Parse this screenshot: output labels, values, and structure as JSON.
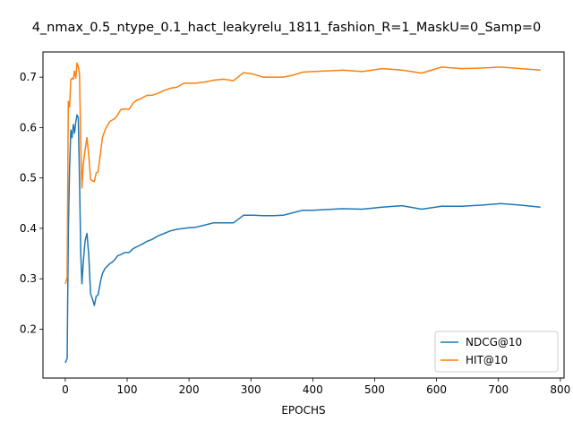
{
  "chart_data": {
    "type": "line",
    "title": "4_nmax_0.5_ntype_0.1_hact_leakyrelu_1811_fashion_R=1_MaskU=0_Samp=0",
    "xlabel": "EPOCHS",
    "ylabel": "",
    "xlim": [
      -36,
      806
    ],
    "ylim": [
      0.103,
      0.75
    ],
    "xticks": [
      0,
      100,
      200,
      300,
      400,
      500,
      600,
      700,
      800
    ],
    "yticks": [
      0.2,
      0.3,
      0.4,
      0.5,
      0.6,
      0.7
    ],
    "grid": false,
    "legend_position": "lower-right",
    "series": [
      {
        "name": "NDCG@10",
        "color": "#1f77b4",
        "x": [
          0,
          3,
          5,
          7,
          9,
          11,
          13,
          15,
          17,
          19,
          21,
          23,
          25,
          27,
          29,
          32,
          35,
          38,
          41,
          44,
          47,
          50,
          53,
          57,
          60,
          64,
          68,
          72,
          76,
          80,
          85,
          90,
          96,
          103,
          110,
          115,
          120,
          126,
          132,
          140,
          150,
          160,
          170,
          180,
          192,
          200,
          210,
          224,
          240,
          256,
          272,
          288,
          304,
          320,
          336,
          352,
          368,
          384,
          400,
          416,
          448,
          480,
          512,
          544,
          576,
          608,
          640,
          672,
          704,
          736,
          768
        ],
        "y": [
          0.133,
          0.142,
          0.39,
          0.52,
          0.595,
          0.58,
          0.606,
          0.589,
          0.611,
          0.625,
          0.62,
          0.5,
          0.35,
          0.29,
          0.33,
          0.375,
          0.39,
          0.348,
          0.27,
          0.26,
          0.247,
          0.265,
          0.268,
          0.295,
          0.31,
          0.32,
          0.325,
          0.33,
          0.333,
          0.338,
          0.346,
          0.348,
          0.352,
          0.352,
          0.36,
          0.363,
          0.366,
          0.37,
          0.374,
          0.378,
          0.385,
          0.39,
          0.395,
          0.398,
          0.4,
          0.401,
          0.402,
          0.406,
          0.411,
          0.411,
          0.411,
          0.426,
          0.426,
          0.425,
          0.425,
          0.426,
          0.431,
          0.436,
          0.436,
          0.437,
          0.439,
          0.438,
          0.442,
          0.445,
          0.438,
          0.444,
          0.444,
          0.446,
          0.449,
          0.446,
          0.442
        ]
      },
      {
        "name": "HIT@10",
        "color": "#ff7f0e",
        "x": [
          0,
          3,
          5,
          7,
          9,
          11,
          13,
          15,
          17,
          19,
          21,
          23,
          25,
          27,
          29,
          32,
          35,
          38,
          41,
          44,
          47,
          50,
          53,
          57,
          60,
          64,
          68,
          72,
          76,
          80,
          85,
          90,
          96,
          103,
          110,
          115,
          120,
          126,
          132,
          140,
          150,
          160,
          170,
          180,
          192,
          200,
          210,
          224,
          240,
          256,
          272,
          288,
          304,
          320,
          336,
          352,
          368,
          384,
          400,
          416,
          448,
          480,
          512,
          544,
          576,
          608,
          640,
          672,
          704,
          736,
          768
        ],
        "y": [
          0.29,
          0.302,
          0.652,
          0.641,
          0.695,
          0.698,
          0.696,
          0.712,
          0.698,
          0.728,
          0.722,
          0.706,
          0.57,
          0.48,
          0.525,
          0.555,
          0.58,
          0.545,
          0.497,
          0.494,
          0.493,
          0.51,
          0.512,
          0.55,
          0.58,
          0.594,
          0.604,
          0.612,
          0.615,
          0.618,
          0.626,
          0.636,
          0.637,
          0.636,
          0.649,
          0.654,
          0.656,
          0.66,
          0.664,
          0.664,
          0.668,
          0.674,
          0.678,
          0.68,
          0.688,
          0.688,
          0.688,
          0.69,
          0.694,
          0.696,
          0.693,
          0.709,
          0.706,
          0.7,
          0.7,
          0.7,
          0.704,
          0.71,
          0.711,
          0.712,
          0.714,
          0.711,
          0.717,
          0.714,
          0.708,
          0.72,
          0.717,
          0.718,
          0.72,
          0.717,
          0.714
        ]
      }
    ]
  }
}
